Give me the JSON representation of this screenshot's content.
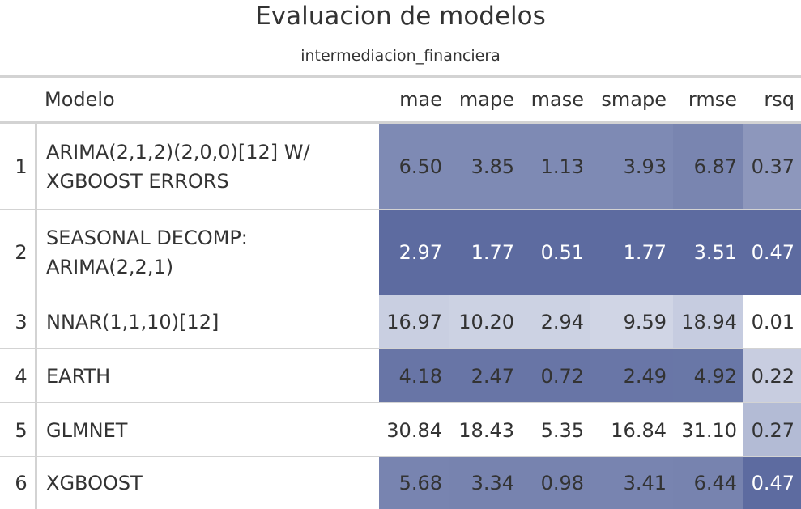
{
  "title": "Evaluacion de modelos",
  "subtitle": "intermediacion_financiera",
  "columns": {
    "rownum": "",
    "modelo": "Modelo",
    "metrics": [
      "mae",
      "mape",
      "mase",
      "smape",
      "rmse",
      "rsq"
    ]
  },
  "rows": [
    {
      "id": "1",
      "modelo": "ARIMA(2,1,2)(2,0,0)[12] W/ XGBOOST ERRORS",
      "values": [
        "6.50",
        "3.85",
        "1.13",
        "3.93",
        "6.87",
        "0.37"
      ],
      "bg": [
        "#7e8ab4",
        "#7e8ab4",
        "#7e8ab4",
        "#7e8ab4",
        "#7985b0",
        "#8d97bc"
      ],
      "fg": [
        "#333333",
        "#333333",
        "#333333",
        "#333333",
        "#333333",
        "#333333"
      ]
    },
    {
      "id": "2",
      "modelo": "SEASONAL DECOMP: ARIMA(2,2,1)",
      "values": [
        "2.97",
        "1.77",
        "0.51",
        "1.77",
        "3.51",
        "0.47"
      ],
      "bg": [
        "#5d6ba0",
        "#5d6ba0",
        "#5d6ba0",
        "#5d6ba0",
        "#5d6ba0",
        "#5d6ba0"
      ],
      "fg": [
        "#ffffff",
        "#ffffff",
        "#ffffff",
        "#ffffff",
        "#ffffff",
        "#ffffff"
      ]
    },
    {
      "id": "3",
      "modelo": "NNAR(1,1,10)[12]",
      "values": [
        "16.97",
        "10.20",
        "2.94",
        "9.59",
        "18.94",
        "0.01"
      ],
      "bg": [
        "#c9cfe1",
        "#ccd2e3",
        "#ccd2e3",
        "#d0d5e5",
        "#c6cce0",
        "#ffffff"
      ],
      "fg": [
        "#333333",
        "#333333",
        "#333333",
        "#333333",
        "#333333",
        "#333333"
      ]
    },
    {
      "id": "4",
      "modelo": "EARTH",
      "values": [
        "4.18",
        "2.47",
        "0.72",
        "2.49",
        "4.92",
        "0.22"
      ],
      "bg": [
        "#6875a6",
        "#6875a6",
        "#6875a6",
        "#6976a7",
        "#6977a7",
        "#c8cde0"
      ],
      "fg": [
        "#333333",
        "#333333",
        "#333333",
        "#333333",
        "#333333",
        "#333333"
      ]
    },
    {
      "id": "5",
      "modelo": "GLMNET",
      "values": [
        "30.84",
        "18.43",
        "5.35",
        "16.84",
        "31.10",
        "0.27"
      ],
      "bg": [
        "#ffffff",
        "#ffffff",
        "#ffffff",
        "#ffffff",
        "#ffffff",
        "#b3bbd5"
      ],
      "fg": [
        "#333333",
        "#333333",
        "#333333",
        "#333333",
        "#333333",
        "#333333"
      ]
    },
    {
      "id": "6",
      "modelo": "XGBOOST",
      "values": [
        "5.68",
        "3.34",
        "0.98",
        "3.41",
        "6.44",
        "0.47"
      ],
      "bg": [
        "#7884b0",
        "#7783af",
        "#7783af",
        "#7884b0",
        "#7783af",
        "#5d6ba0"
      ],
      "fg": [
        "#333333",
        "#333333",
        "#333333",
        "#333333",
        "#333333",
        "#ffffff"
      ]
    }
  ]
}
